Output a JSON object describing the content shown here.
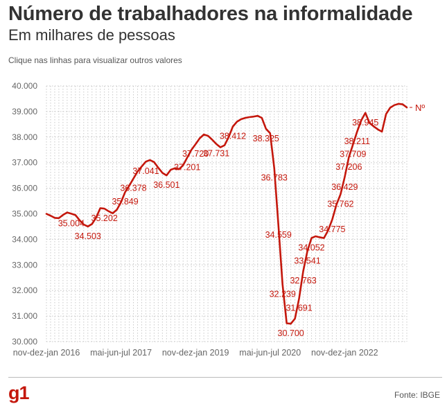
{
  "header": {
    "title": "Número de trabalhadores na informalidade",
    "subtitle": "Em milhares de pessoas",
    "hint": "Clique nas linhas para visualizar outros valores"
  },
  "footer": {
    "logo": "g1",
    "source": "Fonte: IBGE"
  },
  "colors": {
    "line": "#c4170c",
    "label": "#c4170c",
    "grid": "#c8c8c8",
    "axis_text": "#666666"
  },
  "chart_data": {
    "type": "line",
    "ylim": [
      30000,
      40000
    ],
    "yticks": [
      "30.000",
      "31.000",
      "32.000",
      "33.000",
      "34.000",
      "35.000",
      "36.000",
      "37.000",
      "38.000",
      "39.000",
      "40.000"
    ],
    "ytick_values": [
      30000,
      31000,
      32000,
      33000,
      34000,
      35000,
      36000,
      37000,
      38000,
      39000,
      40000
    ],
    "xtick_labels": [
      {
        "index": 0,
        "label": "nov-dez-jan 2016"
      },
      {
        "index": 18,
        "label": "mai-jun-jul 2017"
      },
      {
        "index": 36,
        "label": "nov-dez-jan 2019"
      },
      {
        "index": 54,
        "label": "mai-jun-jul 2020"
      },
      {
        "index": 72,
        "label": "nov-dez-jan 2022"
      }
    ],
    "series": [
      {
        "end_label": "Nº",
        "values": [
          34999,
          34925,
          34840,
          34830,
          34955,
          35050,
          35004,
          34950,
          34750,
          34580,
          34503,
          34600,
          34850,
          35220,
          35202,
          35100,
          35020,
          35160,
          35450,
          35849,
          36100,
          36378,
          36650,
          36850,
          37041,
          37100,
          37020,
          36800,
          36600,
          36501,
          36720,
          36780,
          36740,
          36900,
          37201,
          37500,
          37720,
          37950,
          38100,
          38050,
          37900,
          37731,
          37600,
          37680,
          38000,
          38412,
          38600,
          38700,
          38750,
          38780,
          38800,
          38830,
          38750,
          38325,
          38150,
          36783,
          34559,
          32239,
          30720,
          30700,
          30900,
          31691,
          32763,
          33541,
          34052,
          34120,
          34080,
          34050,
          34350,
          34775,
          35350,
          35762,
          36429,
          37206,
          37709,
          38211,
          38650,
          38945,
          38550,
          38420,
          38300,
          38211,
          38900,
          39150,
          39250,
          39300,
          39280,
          39160
        ]
      }
    ],
    "data_labels": [
      {
        "index": 6,
        "label": "35.004",
        "pos": "below"
      },
      {
        "index": 10,
        "label": "34.503",
        "pos": "below"
      },
      {
        "index": 14,
        "label": "35.202",
        "pos": "below"
      },
      {
        "index": 19,
        "label": "35.849",
        "pos": "below"
      },
      {
        "index": 21,
        "label": "36.378",
        "pos": "below"
      },
      {
        "index": 24,
        "label": "37.041",
        "pos": "below"
      },
      {
        "index": 29,
        "label": "36.501",
        "pos": "below"
      },
      {
        "index": 34,
        "label": "37.201",
        "pos": "below"
      },
      {
        "index": 36,
        "label": "37.720",
        "pos": "below"
      },
      {
        "index": 41,
        "label": "37.731",
        "pos": "below"
      },
      {
        "index": 45,
        "label": "38.412",
        "pos": "below"
      },
      {
        "index": 53,
        "label": "38.325",
        "pos": "below"
      },
      {
        "index": 55,
        "label": "36.783",
        "pos": "below"
      },
      {
        "index": 56,
        "label": "34.559",
        "pos": "below"
      },
      {
        "index": 57,
        "label": "32.239",
        "pos": "below"
      },
      {
        "index": 59,
        "label": "30.700",
        "pos": "below"
      },
      {
        "index": 61,
        "label": "31.691",
        "pos": "below"
      },
      {
        "index": 62,
        "label": "32.763",
        "pos": "below"
      },
      {
        "index": 63,
        "label": "33.541",
        "pos": "below"
      },
      {
        "index": 64,
        "label": "34.052",
        "pos": "below"
      },
      {
        "index": 69,
        "label": "34.775",
        "pos": "below"
      },
      {
        "index": 71,
        "label": "35.762",
        "pos": "below"
      },
      {
        "index": 72,
        "label": "36.429",
        "pos": "below"
      },
      {
        "index": 73,
        "label": "37.206",
        "pos": "below"
      },
      {
        "index": 74,
        "label": "37.709",
        "pos": "below"
      },
      {
        "index": 75,
        "label": "38.211",
        "pos": "below"
      },
      {
        "index": 77,
        "label": "38.945",
        "pos": "below"
      }
    ],
    "grid": true
  }
}
